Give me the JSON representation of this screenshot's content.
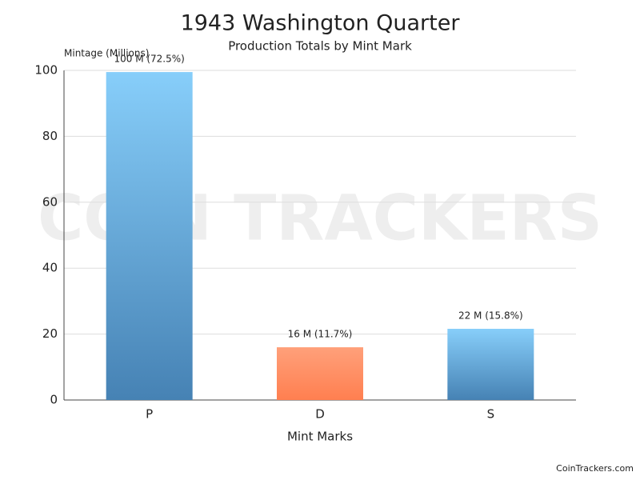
{
  "chart_data": {
    "type": "bar",
    "title": "1943 Washington Quarter",
    "subtitle": "Production Totals by Mint Mark",
    "y_label": "Mintage (Millions)",
    "x_label": "Mint Marks",
    "watermark": "COIN TRACKERS",
    "footer": "CoinTrackers.com",
    "categories": [
      "P",
      "D",
      "S"
    ],
    "values": [
      99.5,
      16,
      21.6
    ],
    "value_labels": [
      "100 M (72.5%)",
      "16 M (11.7%)",
      "22 M (15.8%)"
    ],
    "colors": [
      {
        "top": "#87cefa",
        "bottom": "#4682b4"
      },
      {
        "top": "#ffa07a",
        "bottom": "#ff7f50"
      },
      {
        "top": "#87cefa",
        "bottom": "#4682b4"
      }
    ],
    "ylim": [
      0,
      100
    ],
    "yticks": [
      0,
      20,
      40,
      60,
      80,
      100
    ],
    "grid": true
  }
}
